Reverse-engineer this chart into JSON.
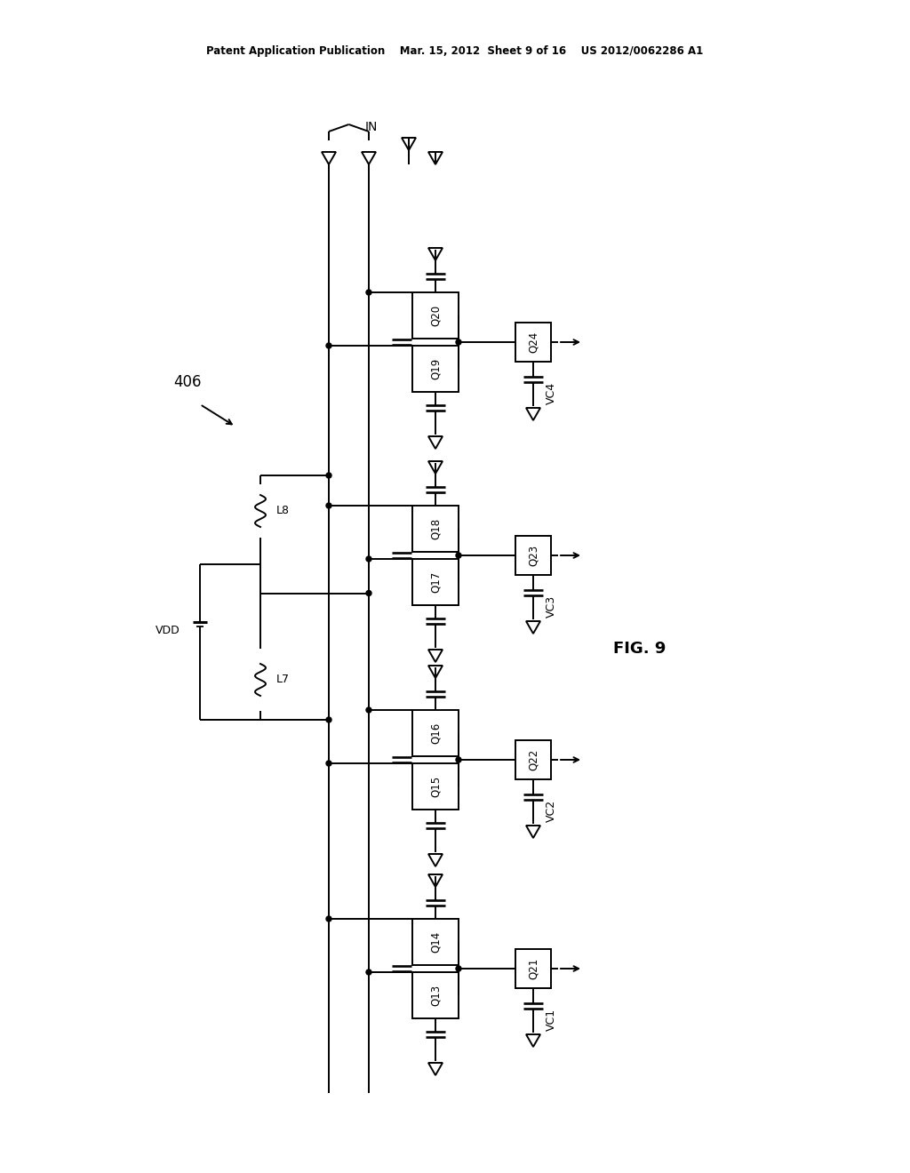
{
  "header": "Patent Application Publication    Mar. 15, 2012  Sheet 9 of 16    US 2012/0062286 A1",
  "fig_label": "FIG. 9",
  "circuit_label": "406",
  "background_color": "#ffffff",
  "line_color": "#000000",
  "lw": 1.4,
  "fs": 9,
  "sections": [
    {
      "q_bot": "Q13",
      "q_top": "Q14",
      "q_out": "Q21",
      "vc": "VC1"
    },
    {
      "q_bot": "Q15",
      "q_top": "Q16",
      "q_out": "Q22",
      "vc": "VC2"
    },
    {
      "q_bot": "Q17",
      "q_top": "Q18",
      "q_out": "Q23",
      "vc": "VC3"
    },
    {
      "q_bot": "Q19",
      "q_top": "Q20",
      "q_out": "Q24",
      "vc": "VC4"
    }
  ]
}
